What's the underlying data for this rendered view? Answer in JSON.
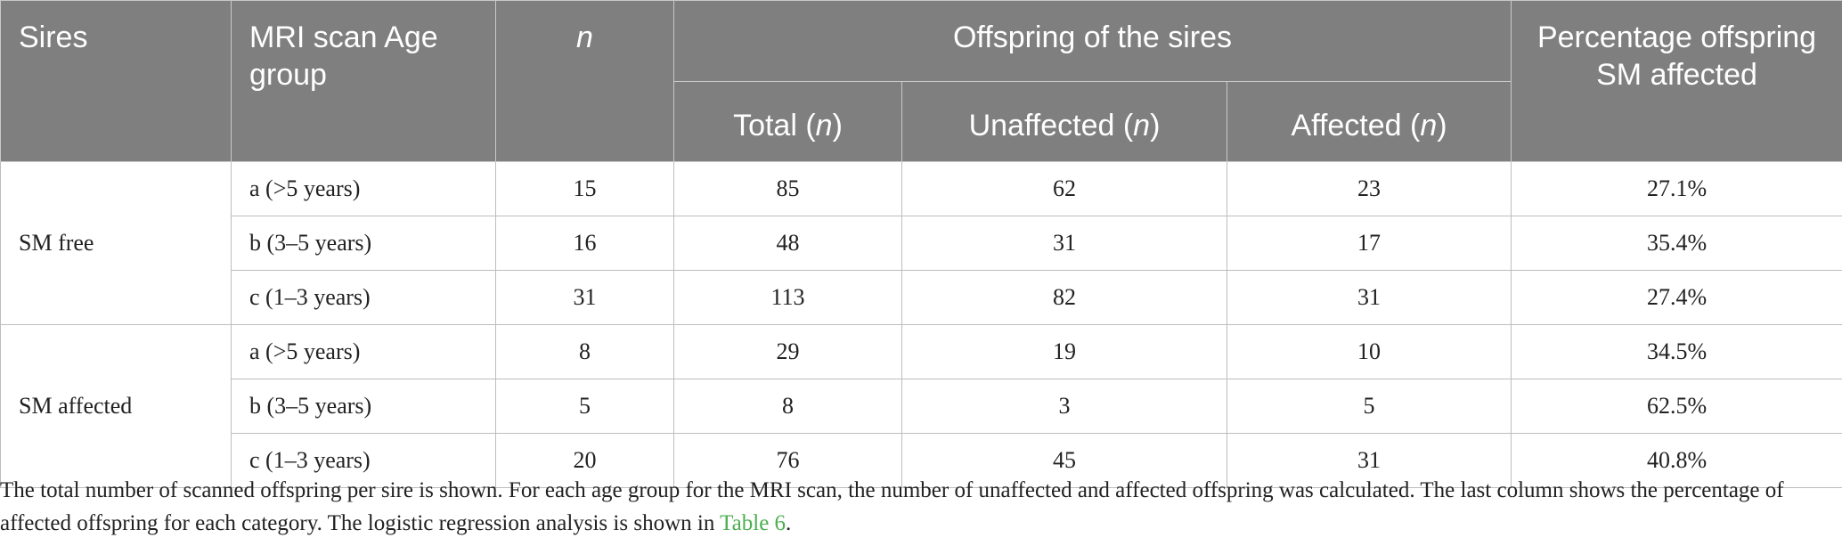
{
  "table": {
    "headers": {
      "sires": "Sires",
      "age_group": "MRI scan Age group",
      "n": "n",
      "offspring_group": "Offspring of the sires",
      "total_label": "Total (",
      "total_n": "n",
      "total_close": ")",
      "unaffected_label": "Unaffected (",
      "unaffected_n": "n",
      "unaffected_close": ")",
      "affected_label": "Affected (",
      "affected_n": "n",
      "affected_close": ")",
      "percentage": "Percentage offspring SM affected"
    },
    "groups": [
      {
        "name": "SM free",
        "rows": [
          {
            "age": "a (>5 years)",
            "n": "15",
            "total": "85",
            "unaffected": "62",
            "affected": "23",
            "pct": "27.1%"
          },
          {
            "age": "b (3–5 years)",
            "n": "16",
            "total": "48",
            "unaffected": "31",
            "affected": "17",
            "pct": "35.4%"
          },
          {
            "age": "c (1–3 years)",
            "n": "31",
            "total": "113",
            "unaffected": "82",
            "affected": "31",
            "pct": "27.4%"
          }
        ]
      },
      {
        "name": "SM affected",
        "rows": [
          {
            "age": "a (>5 years)",
            "n": "8",
            "total": "29",
            "unaffected": "19",
            "affected": "10",
            "pct": "34.5%"
          },
          {
            "age": "b (3–5 years)",
            "n": "5",
            "total": "8",
            "unaffected": "3",
            "affected": "5",
            "pct": "62.5%"
          },
          {
            "age": "c (1–3 years)",
            "n": "20",
            "total": "76",
            "unaffected": "45",
            "affected": "31",
            "pct": "40.8%"
          }
        ]
      }
    ]
  },
  "footnote": {
    "text_before": "The total number of scanned offspring per sire is shown. For each age group for the MRI scan, the number of unaffected and affected offspring was calculated. The last column shows the percentage of affected offspring for each category. The logistic regression analysis is shown in ",
    "link": "Table 6",
    "text_after": "."
  },
  "colors": {
    "header_bg": "#7f7f7f",
    "link": "#4caf50"
  }
}
